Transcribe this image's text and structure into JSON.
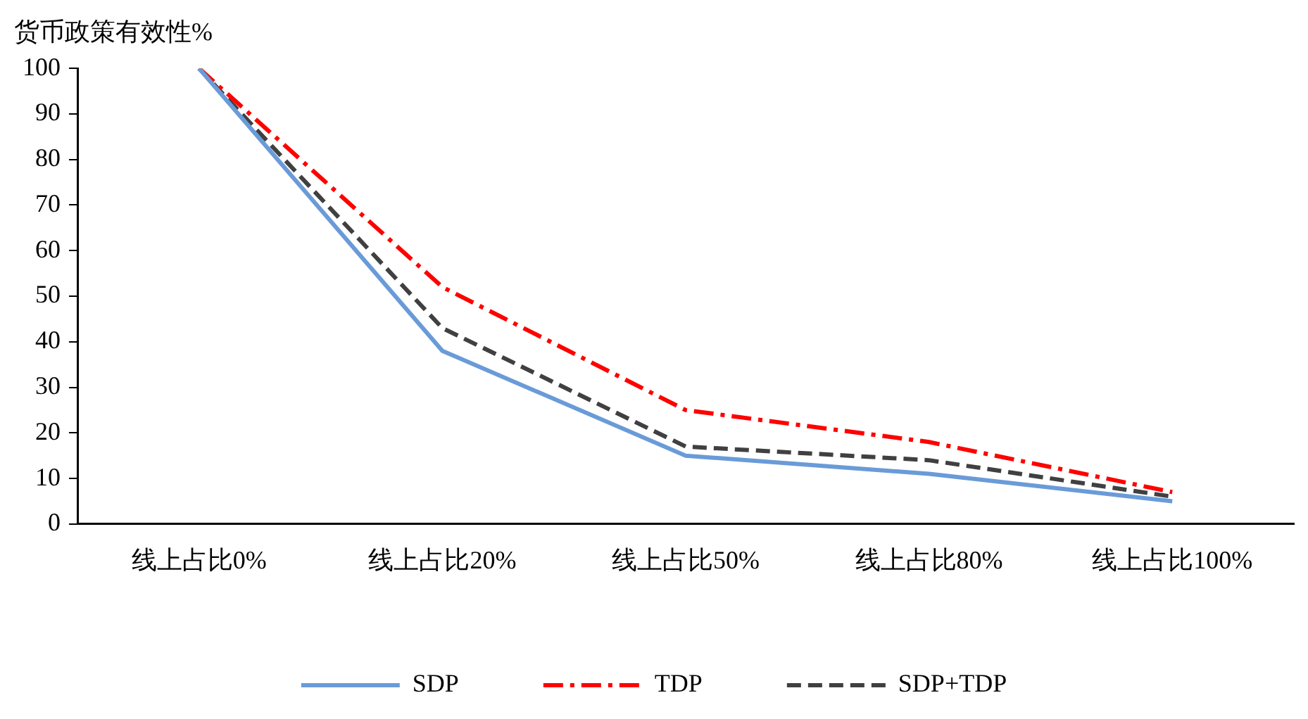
{
  "chart_data": {
    "type": "line",
    "ylabel": "货币政策有效性%",
    "categories": [
      "线上占比0%",
      "线上占比20%",
      "线上占比50%",
      "线上占比80%",
      "线上占比100%"
    ],
    "series": [
      {
        "name": "SDP",
        "color": "#6a9bd8",
        "line_style": "solid",
        "values": [
          100,
          38,
          15,
          11,
          5
        ]
      },
      {
        "name": "TDP",
        "color": "#ff0000",
        "line_style": "dashdot",
        "values": [
          100,
          52,
          25,
          18,
          7
        ]
      },
      {
        "name": "SDP+TDP",
        "color": "#404040",
        "line_style": "dashed",
        "values": [
          100,
          43,
          17,
          14,
          6
        ]
      }
    ],
    "ylim": [
      0,
      100
    ],
    "yticks": [
      0,
      10,
      20,
      30,
      40,
      50,
      60,
      70,
      80,
      90,
      100
    ],
    "grid": false,
    "legend": "bottom",
    "marker": "none"
  }
}
